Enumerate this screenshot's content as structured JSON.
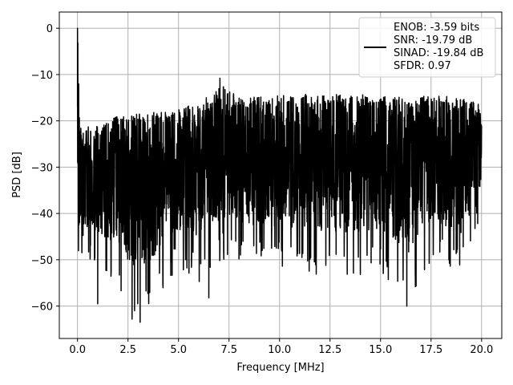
{
  "chart_data": {
    "type": "line",
    "title": "",
    "xlabel": "Frequency [MHz]",
    "ylabel": "PSD [dB]",
    "xlim": [
      -0.9,
      21.0
    ],
    "ylim": [
      -67.0,
      3.5
    ],
    "xticks": [
      0.0,
      2.5,
      5.0,
      7.5,
      10.0,
      12.5,
      15.0,
      17.5,
      20.0
    ],
    "xtick_labels": [
      "0.0",
      "2.5",
      "5.0",
      "7.5",
      "10.0",
      "12.5",
      "15.0",
      "17.5",
      "20.0"
    ],
    "yticks": [
      0,
      -10,
      -20,
      -30,
      -40,
      -50,
      -60
    ],
    "ytick_labels": [
      "0",
      "−10",
      "−20",
      "−30",
      "−40",
      "−50",
      "−60"
    ],
    "grid": true,
    "legend_position": "upper right",
    "line_color": "#000000",
    "series": [
      {
        "name": "ENOB: -3.59 bits\nSNR: -19.79 dB\nSINAD: -19.84 dB\nSFDR: 0.97",
        "envelope": {
          "x": [
            0.0,
            0.03,
            0.07,
            0.1,
            0.2,
            0.5,
            1.0,
            2.0,
            2.7,
            3.1,
            5.0,
            6.0,
            6.9,
            7.1,
            8.0,
            10.0,
            12.5,
            15.0,
            16.3,
            17.5,
            19.0,
            20.0
          ],
          "upper": [
            0.0,
            -5.0,
            -12.0,
            -19.0,
            -22.0,
            -21.0,
            -21.0,
            -19.0,
            -18.5,
            -18.5,
            -17.5,
            -16.0,
            -13.5,
            -11.0,
            -15.0,
            -14.5,
            -14.0,
            -14.5,
            -15.0,
            -14.5,
            -15.0,
            -16.0
          ],
          "lower": [
            -36.0,
            -50.0,
            -54.0,
            -52.0,
            -49.0,
            -50.0,
            -53.0,
            -55.0,
            -63.0,
            -63.5,
            -52.0,
            -55.0,
            -52.0,
            -50.0,
            -52.0,
            -52.0,
            -54.0,
            -53.0,
            -60.0,
            -50.0,
            -54.0,
            -40.0
          ]
        },
        "notable_points": [
          {
            "x": 0.0,
            "y": 0.0
          },
          {
            "x": 1.0,
            "y": -59.5
          },
          {
            "x": 2.7,
            "y": -62.8
          },
          {
            "x": 3.1,
            "y": -63.5
          },
          {
            "x": 6.5,
            "y": -58.2
          },
          {
            "x": 7.05,
            "y": -10.8
          },
          {
            "x": 16.3,
            "y": -60.0
          }
        ]
      }
    ]
  },
  "legend": {
    "lines": [
      "ENOB: -3.59 bits",
      "SNR: -19.79 dB",
      "SINAD: -19.84 dB",
      "SFDR: 0.97"
    ]
  }
}
